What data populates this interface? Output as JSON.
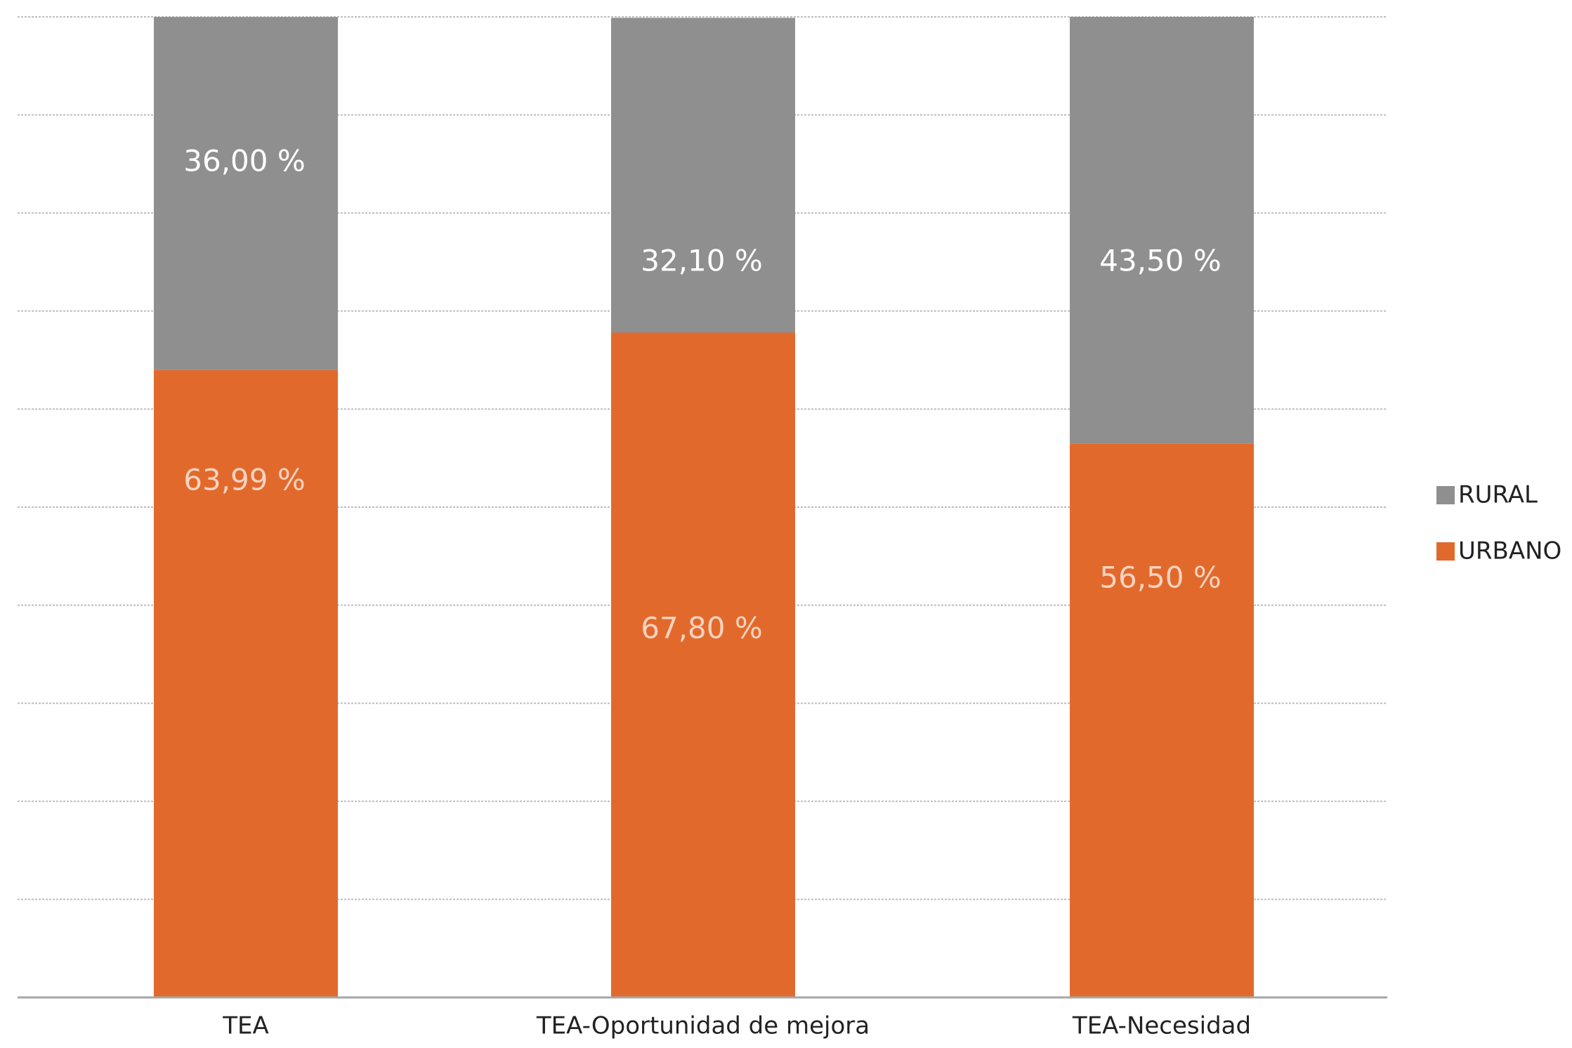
{
  "chart_data": {
    "type": "bar",
    "stacked": true,
    "percent_stacked": true,
    "categories": [
      "TEA",
      "TEA-Oportunidad de mejora",
      "TEA-Necesidad"
    ],
    "series": [
      {
        "name": "URBANO",
        "color": "#E2692C",
        "values": [
          63.99,
          67.8,
          56.5
        ],
        "labels": [
          "63,99 %",
          "67,80 %",
          "56,50 %"
        ]
      },
      {
        "name": "RURAL",
        "color": "#8F8F8F",
        "values": [
          36.0,
          32.1,
          43.5
        ],
        "labels": [
          "36,00 %",
          "32,10 %",
          "43,50 %"
        ]
      }
    ],
    "legend_order": [
      "RURAL",
      "URBANO"
    ],
    "title": "",
    "xlabel": "",
    "ylabel": "",
    "ylim": [
      0,
      100
    ],
    "grid": true,
    "gridline_count": 10,
    "legend_position": "right",
    "label_color_rural": "#FFFFFF",
    "label_color_urbano": "#F6D3BF",
    "gridline_color": "#BDBDBD",
    "axis_color": "#A6A6A6",
    "tick_label_color": "#222222"
  }
}
